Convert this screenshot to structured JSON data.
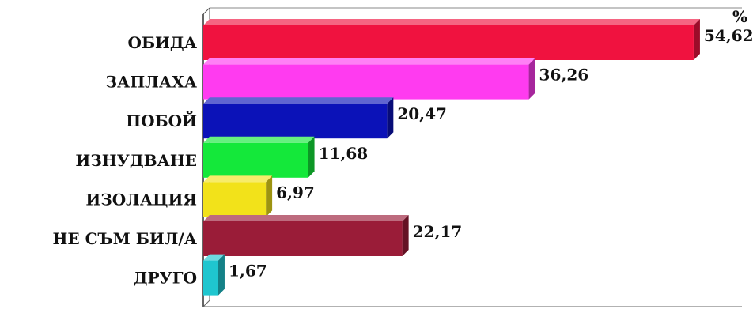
{
  "chart_data": {
    "type": "bar",
    "orientation": "horizontal",
    "unit": "%",
    "categories": [
      "ОБИДА",
      "ЗАПЛАХА",
      "ПОБОЙ",
      "ИЗНУДВАНЕ",
      "ИЗОЛАЦИЯ",
      "НЕ СЪМ БИЛ/А",
      "ДРУГО"
    ],
    "values": [
      54.62,
      36.26,
      20.47,
      11.68,
      6.97,
      22.17,
      1.67
    ],
    "value_labels": [
      "54,62",
      "36,26",
      "20,47",
      "11,68",
      "6,97",
      "22,17",
      "1,67"
    ],
    "colors": [
      "#f0123f",
      "#ff3bf0",
      "#0b12b8",
      "#14e83a",
      "#f2e21a",
      "#9a1c38",
      "#1fc6cf"
    ],
    "xlim": [
      0,
      60
    ],
    "grid": false,
    "legend": "none",
    "render_3d": true
  }
}
